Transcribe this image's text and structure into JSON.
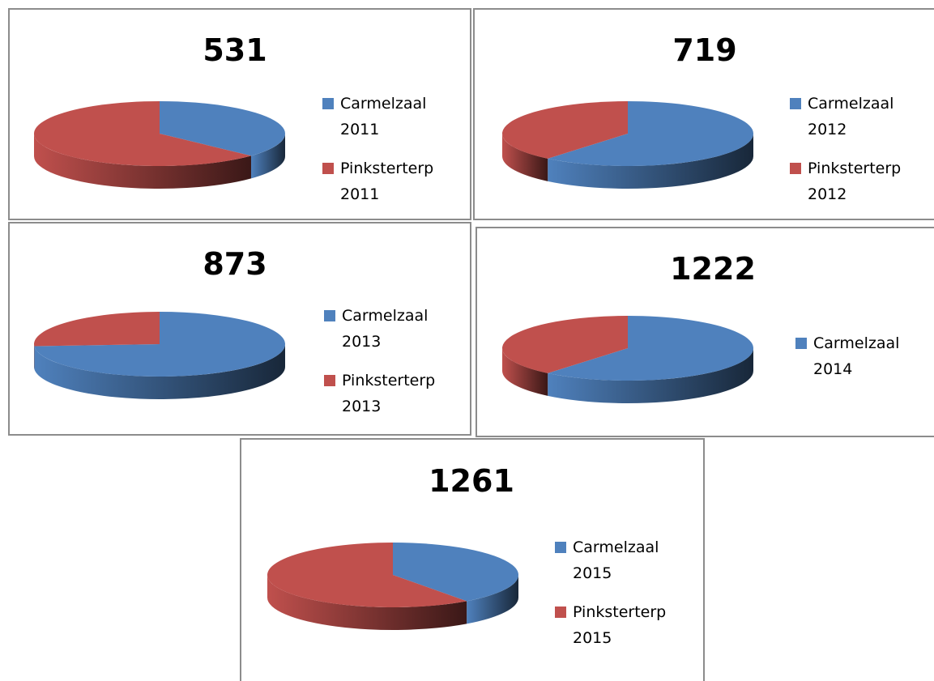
{
  "chart_data": [
    {
      "type": "pie",
      "title": "531",
      "categories": [
        "Carmelzaal 2011",
        "Pinksterterp 2011"
      ],
      "values": [
        37,
        63
      ],
      "colors": [
        "#4f81bd",
        "#c0504d"
      ]
    },
    {
      "type": "pie",
      "title": "719",
      "categories": [
        "Carmelzaal 2012",
        "Pinksterterp 2012"
      ],
      "values": [
        61,
        39
      ],
      "colors": [
        "#4f81bd",
        "#c0504d"
      ]
    },
    {
      "type": "pie",
      "title": "873",
      "categories": [
        "Carmelzaal 2013",
        "Pinksterterp 2013"
      ],
      "values": [
        74,
        26
      ],
      "colors": [
        "#4f81bd",
        "#c0504d"
      ]
    },
    {
      "type": "pie",
      "title": "1222",
      "categories": [
        "Carmelzaal 2014",
        null
      ],
      "values": [
        61,
        39
      ],
      "colors": [
        "#4f81bd",
        "#c0504d"
      ]
    },
    {
      "type": "pie",
      "title": "1261",
      "categories": [
        "Carmelzaal 2015",
        "Pinksterterp 2015"
      ],
      "values": [
        40,
        60
      ],
      "colors": [
        "#4f81bd",
        "#c0504d"
      ]
    }
  ]
}
